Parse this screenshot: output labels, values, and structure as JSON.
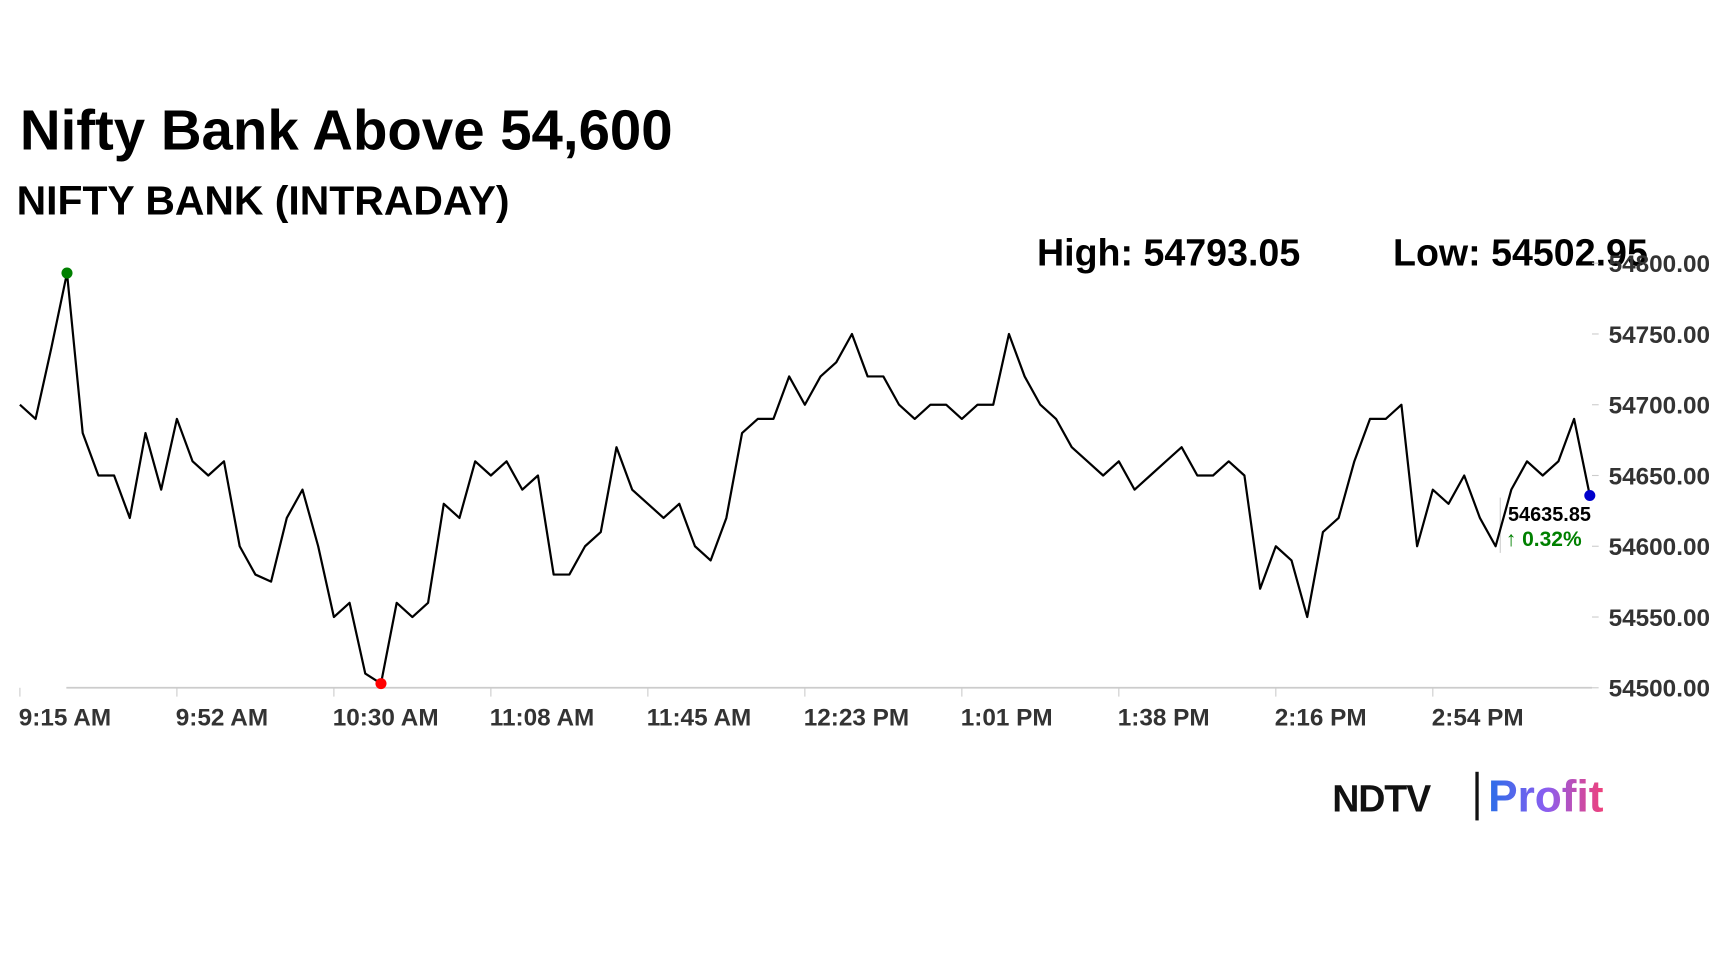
{
  "chart_data": {
    "type": "line",
    "title": "Nifty Bank Above 54,600",
    "subtitle": "NIFTY BANK (INTRADAY)",
    "high_label": "High:",
    "low_label": "Low:",
    "high_index": 3,
    "low_index": 23,
    "change": {
      "value": 0.32,
      "label": "↑ 0.32%"
    },
    "color": "#000000",
    "high_color": "#008000",
    "low_color": "#ff0000",
    "last_color": "#0000cc",
    "categories": [
      "9:15 AM",
      null,
      null,
      null,
      null,
      null,
      null,
      null,
      null,
      null,
      "9:52 AM",
      null,
      null,
      null,
      null,
      null,
      null,
      null,
      null,
      null,
      "10:30 AM",
      null,
      null,
      null,
      null,
      null,
      null,
      null,
      null,
      null,
      "11:08 AM",
      null,
      null,
      null,
      null,
      null,
      null,
      null,
      null,
      null,
      "11:45 AM",
      null,
      null,
      null,
      null,
      null,
      null,
      null,
      null,
      null,
      "12:23 PM",
      null,
      null,
      null,
      null,
      null,
      null,
      null,
      null,
      null,
      "1:01 PM",
      null,
      null,
      null,
      null,
      null,
      null,
      null,
      null,
      null,
      "1:38 PM",
      null,
      null,
      null,
      null,
      null,
      null,
      null,
      null,
      null,
      "2:16 PM",
      null,
      null,
      null,
      null,
      null,
      null,
      null,
      null,
      null,
      "2:54 PM",
      null,
      null,
      null,
      null,
      null,
      null,
      null,
      null,
      null,
      null
    ],
    "values": [
      54700,
      54690,
      54740,
      54793.05,
      54680,
      54650,
      54650,
      54620,
      54680,
      54640,
      54690,
      54660,
      54650,
      54660,
      54600,
      54580,
      54575,
      54620,
      54640,
      54600,
      54550,
      54560,
      54510,
      54502.95,
      54560,
      54550,
      54560,
      54630,
      54620,
      54660,
      54650,
      54660,
      54640,
      54650,
      54580,
      54580,
      54600,
      54610,
      54670,
      54640,
      54630,
      54620,
      54630,
      54600,
      54590,
      54620,
      54680,
      54690,
      54690,
      54720,
      54700,
      54720,
      54730,
      54750,
      54720,
      54720,
      54700,
      54690,
      54700,
      54700,
      54690,
      54700,
      54700,
      54750,
      54720,
      54700,
      54690,
      54670,
      54660,
      54650,
      54660,
      54640,
      54650,
      54660,
      54670,
      54650,
      54650,
      54660,
      54650,
      54570,
      54600,
      54590,
      54550,
      54610,
      54620,
      54660,
      54690,
      54690,
      54700,
      54600,
      54640,
      54630,
      54650,
      54620,
      54600,
      54640,
      54660,
      54650,
      54660,
      54690,
      54635.85
    ],
    "ylim": [
      54500,
      54800
    ],
    "yticks": [
      {
        "value": 54500,
        "label": "54500.00"
      },
      {
        "value": 54550,
        "label": "54550.00"
      },
      {
        "value": 54600,
        "label": "54600.00"
      },
      {
        "value": 54650,
        "label": "54650.00"
      },
      {
        "value": 54700,
        "label": "54700.00"
      },
      {
        "value": 54750,
        "label": "54750.00"
      },
      {
        "value": 54800,
        "label": "54800.00"
      }
    ],
    "grid": false
  },
  "logo": {
    "brand": "NDTV",
    "product": "Profit"
  }
}
